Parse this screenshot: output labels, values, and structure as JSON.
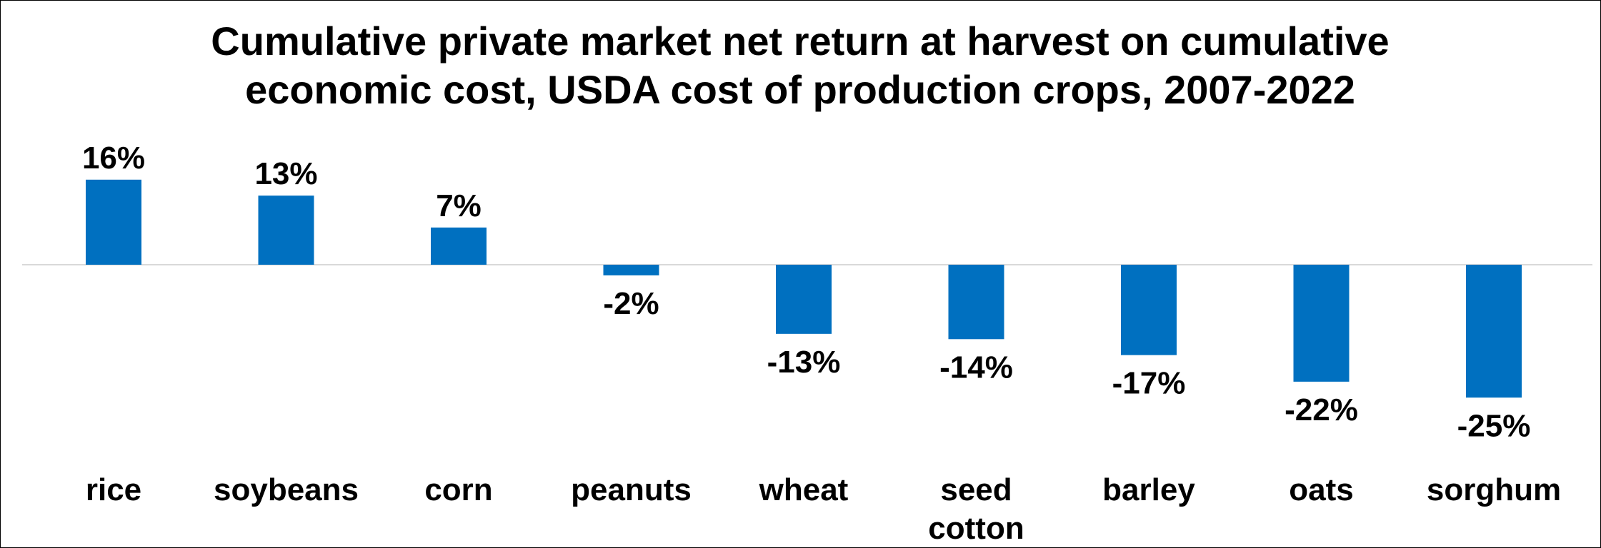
{
  "chart_data": {
    "type": "bar",
    "title_lines": [
      "Cumulative private market net return at harvest on cumulative",
      "economic cost, USDA cost of production crops, 2007-2022"
    ],
    "categories": [
      "rice",
      "soybeans",
      "corn",
      "peanuts",
      "wheat",
      "seed cotton",
      "barley",
      "oats",
      "sorghum"
    ],
    "values": [
      16,
      13,
      7,
      -2,
      -13,
      -14,
      -17,
      -22,
      -25
    ],
    "data_labels": [
      "16%",
      "13%",
      "7%",
      "-2%",
      "-13%",
      "-14%",
      "-17%",
      "-22%",
      "-25%"
    ],
    "unit": "%",
    "ylim": [
      -25,
      16
    ],
    "grid": false,
    "legend": "none",
    "bar_color": "#0070C0",
    "axis_color": "#D9D9D9"
  }
}
